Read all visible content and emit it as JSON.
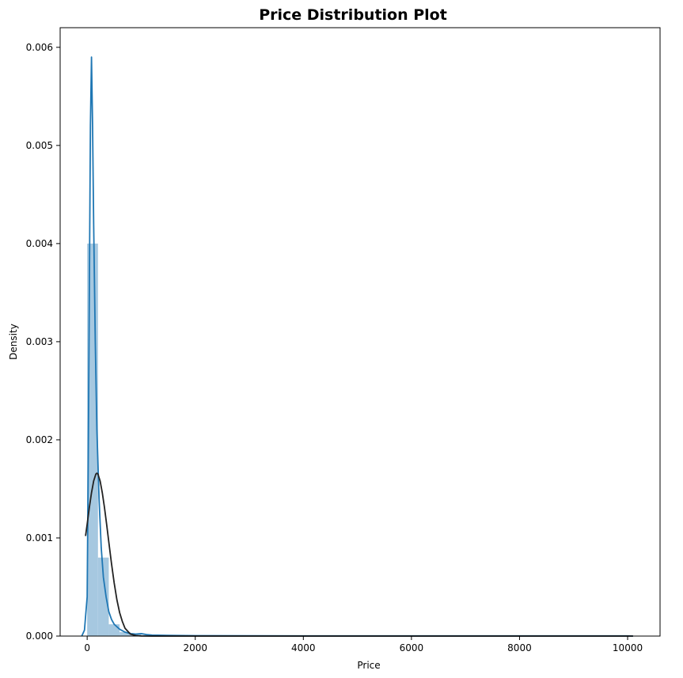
{
  "chart_data": {
    "type": "histogram",
    "title": "Price Distribution Plot",
    "xlabel": "Price",
    "ylabel": "Density",
    "xlim": [
      -500,
      10600
    ],
    "ylim": [
      0,
      0.0062
    ],
    "xticks": [
      0,
      2000,
      4000,
      6000,
      8000,
      10000
    ],
    "xtick_labels": [
      "0",
      "2000",
      "4000",
      "6000",
      "8000",
      "10000"
    ],
    "yticks": [
      0,
      0.001,
      0.002,
      0.003,
      0.004,
      0.005,
      0.006
    ],
    "ytick_labels": [
      "0.000",
      "0.001",
      "0.002",
      "0.003",
      "0.004",
      "0.005",
      "0.006"
    ],
    "grid": false,
    "colors": {
      "bars": "#a6c8e0",
      "kde": "#1f77b4",
      "normal_fit": "#222222"
    },
    "bins": {
      "edges": [
        0,
        200,
        400,
        600,
        800,
        1000,
        1200,
        1400,
        1600,
        1800,
        2000,
        2200,
        2400,
        2600,
        2800,
        3000,
        3200,
        3400,
        3600,
        3800,
        4000,
        4200,
        4400,
        4600,
        4800,
        5000,
        5200,
        5400,
        5600,
        5800,
        6000,
        6200,
        6400,
        6600,
        6800,
        7000,
        7200,
        7400,
        7600,
        7800,
        8000,
        8200,
        8400,
        8600,
        8800,
        9000,
        9200,
        9400,
        9600,
        9800,
        10000
      ],
      "density": [
        0.004,
        0.0008,
        0.00012,
        4e-05,
        2e-05,
        1e-05,
        5e-06,
        5e-06,
        4e-06,
        3e-06,
        3e-06,
        2e-06,
        2e-06,
        2e-06,
        2e-06,
        2e-06,
        1e-06,
        1e-06,
        1e-06,
        1e-06,
        1e-06,
        1e-06,
        1e-06,
        1e-06,
        1e-06,
        1e-06,
        1e-06,
        1e-06,
        1e-06,
        1e-06,
        1e-06,
        1e-06,
        1e-06,
        1e-06,
        1e-06,
        1e-06,
        1e-06,
        1e-06,
        1e-06,
        1e-06,
        1e-06,
        1e-06,
        1e-06,
        1e-06,
        1e-06,
        1e-06,
        1e-06,
        1e-06,
        1e-06,
        1e-06
      ]
    },
    "series": [
      {
        "type": "line",
        "x": [
          -100,
          -50,
          0,
          20,
          40,
          60,
          80,
          100,
          120,
          150,
          180,
          220,
          260,
          300,
          350,
          400,
          450,
          500,
          600,
          700,
          800,
          900,
          1000,
          1100,
          1200,
          1500,
          2000,
          3000,
          4000,
          5000,
          6000,
          7000,
          8000,
          9000,
          10000,
          10100
        ],
        "y": [
          0.0,
          6e-05,
          0.0004,
          0.0018,
          0.0035,
          0.0052,
          0.0059,
          0.0052,
          0.0042,
          0.003,
          0.0021,
          0.0014,
          0.0009,
          0.0006,
          0.0004,
          0.00025,
          0.00017,
          0.00012,
          7e-05,
          4e-05,
          2.5e-05,
          2e-05,
          2.5e-05,
          1.5e-05,
          1e-05,
          7e-06,
          4e-06,
          3e-06,
          2e-06,
          2e-06,
          2e-06,
          2e-06,
          2e-06,
          2e-06,
          2e-06,
          0.0
        ]
      },
      {
        "type": "line",
        "x": [
          -30,
          0,
          40,
          80,
          120,
          160,
          180,
          200,
          240,
          280,
          320,
          360,
          400,
          450,
          500,
          550,
          600,
          650,
          700,
          800,
          900,
          1000,
          1200,
          1600,
          2000,
          4000,
          6000,
          8000,
          10000,
          10100
        ],
        "y": [
          0.00102,
          0.00114,
          0.00131,
          0.00146,
          0.00158,
          0.00165,
          0.00166,
          0.00165,
          0.00158,
          0.00146,
          0.00131,
          0.00114,
          0.00096,
          0.00074,
          0.00054,
          0.00037,
          0.00024,
          0.00015,
          8e-05,
          2e-05,
          5e-06,
          1e-06,
          0.0,
          0.0,
          0.0,
          0.0,
          0.0,
          0.0,
          0.0,
          0.0
        ]
      }
    ]
  }
}
